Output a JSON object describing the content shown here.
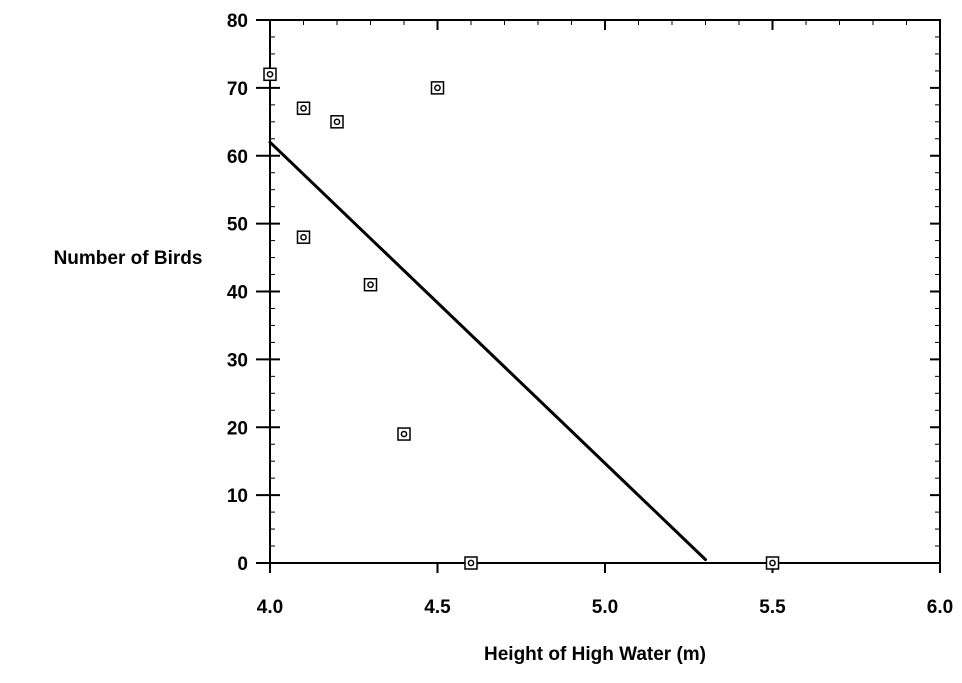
{
  "chart_data": {
    "type": "scatter",
    "title": "",
    "xlabel": "Height of High Water (m)",
    "ylabel": "Number of Birds",
    "xlim": [
      4.0,
      6.0
    ],
    "ylim": [
      0,
      80
    ],
    "x_ticks": [
      4.0,
      4.5,
      5.0,
      5.5,
      6.0
    ],
    "x_tick_labels": [
      "4.0",
      "4.5",
      "5.0",
      "5.5",
      "6.0"
    ],
    "y_ticks": [
      0,
      10,
      20,
      30,
      40,
      50,
      60,
      70,
      80
    ],
    "y_tick_labels": [
      "0",
      "10",
      "20",
      "30",
      "40",
      "50",
      "60",
      "70",
      "80"
    ],
    "y_minor_step": 2.5,
    "x_minor_step": 0.1,
    "grid": false,
    "marker": "square-with-circle",
    "points": [
      {
        "x": 4.0,
        "y": 72
      },
      {
        "x": 4.1,
        "y": 67
      },
      {
        "x": 4.2,
        "y": 65
      },
      {
        "x": 4.5,
        "y": 70
      },
      {
        "x": 4.1,
        "y": 48
      },
      {
        "x": 4.3,
        "y": 41
      },
      {
        "x": 4.4,
        "y": 19
      },
      {
        "x": 4.6,
        "y": 0
      },
      {
        "x": 5.5,
        "y": 0
      }
    ],
    "fit_line": {
      "x": [
        4.0,
        5.3
      ],
      "y": [
        62,
        0.5
      ]
    }
  }
}
